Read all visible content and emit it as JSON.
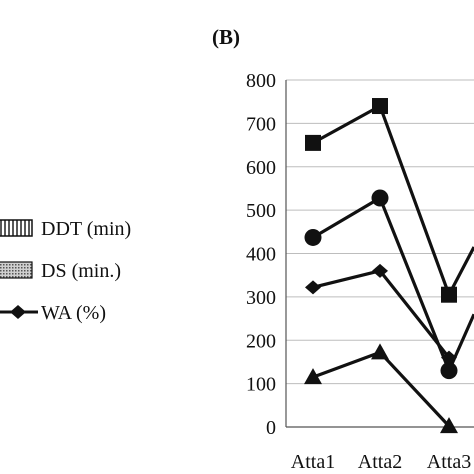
{
  "chart_data": {
    "type": "line",
    "panel_label": "(B)",
    "title": "",
    "xlabel": "",
    "ylabel": "",
    "categories": [
      "Atta1",
      "Atta2",
      "Atta3"
    ],
    "ylim": [
      0,
      800
    ],
    "yticks": [
      0,
      100,
      200,
      300,
      400,
      500,
      600,
      700,
      800
    ],
    "grid": "horizontal",
    "legend_placement": "left",
    "legend": [
      {
        "label": "DDT (min)",
        "swatch": "vertical-hatch"
      },
      {
        "label": "DS (min.)",
        "swatch": "dotted-fill"
      },
      {
        "label": "WA (%)",
        "swatch": "line-diamond"
      }
    ],
    "series": [
      {
        "marker": "square",
        "values": [
          655,
          740,
          305
        ]
      },
      {
        "marker": "circle",
        "values": [
          437,
          528,
          130
        ]
      },
      {
        "marker": "diamond",
        "values": [
          322,
          360,
          160
        ]
      },
      {
        "marker": "triangle",
        "values": [
          115,
          172,
          2
        ]
      }
    ],
    "continuation_y": [
      415,
      260
    ],
    "colors": {
      "line": "#111111",
      "grid": "#bdbdbd",
      "axis": "#555555"
    }
  }
}
